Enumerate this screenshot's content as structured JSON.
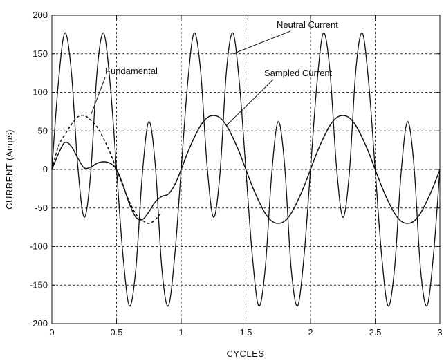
{
  "chart_data": {
    "type": "line",
    "xlabel": "CYCLES",
    "ylabel": "CURRENT (Amps)",
    "xlim": [
      0,
      3
    ],
    "ylim": [
      -200,
      200
    ],
    "xticks": [
      0,
      0.5,
      1,
      1.5,
      2,
      2.5,
      3
    ],
    "xtick_labels": [
      "0",
      "0.5",
      "1",
      "1.5",
      "2",
      "2.5",
      "3"
    ],
    "yticks": [
      -200,
      -150,
      -100,
      -50,
      0,
      50,
      100,
      150,
      200
    ],
    "ytick_labels": [
      "-200",
      "-150",
      "-100",
      "-50",
      "0",
      "50",
      "100",
      "150",
      "200"
    ],
    "grid": true,
    "series": [
      {
        "name": "Neutral Current",
        "style": "solid",
        "points": [
          [
            0,
            0
          ],
          [
            0.05,
            112
          ],
          [
            0.1,
            177
          ],
          [
            0.15,
            128
          ],
          [
            0.2,
            5
          ],
          [
            0.25,
            -62
          ],
          [
            0.3,
            -5
          ],
          [
            0.35,
            128
          ],
          [
            0.4,
            177
          ],
          [
            0.45,
            112
          ],
          [
            0.5,
            0
          ],
          [
            0.55,
            -112
          ],
          [
            0.6,
            -177
          ],
          [
            0.65,
            -128
          ],
          [
            0.7,
            -5
          ],
          [
            0.75,
            62
          ],
          [
            0.8,
            5
          ],
          [
            0.85,
            -128
          ],
          [
            0.9,
            -177
          ],
          [
            0.95,
            -112
          ],
          [
            1.0,
            0
          ],
          [
            1.05,
            112
          ],
          [
            1.1,
            177
          ],
          [
            1.15,
            128
          ],
          [
            1.2,
            5
          ],
          [
            1.25,
            -62
          ],
          [
            1.3,
            -5
          ],
          [
            1.35,
            128
          ],
          [
            1.4,
            177
          ],
          [
            1.45,
            112
          ],
          [
            1.5,
            0
          ],
          [
            1.55,
            -112
          ],
          [
            1.6,
            -177
          ],
          [
            1.65,
            -128
          ],
          [
            1.7,
            -5
          ],
          [
            1.75,
            62
          ],
          [
            1.8,
            5
          ],
          [
            1.85,
            -128
          ],
          [
            1.9,
            -177
          ],
          [
            1.95,
            -112
          ],
          [
            2.0,
            0
          ],
          [
            2.05,
            112
          ],
          [
            2.1,
            177
          ],
          [
            2.15,
            128
          ],
          [
            2.2,
            5
          ],
          [
            2.25,
            -62
          ],
          [
            2.3,
            -5
          ],
          [
            2.35,
            128
          ],
          [
            2.4,
            177
          ],
          [
            2.45,
            112
          ],
          [
            2.5,
            0
          ],
          [
            2.55,
            -112
          ],
          [
            2.6,
            -177
          ],
          [
            2.65,
            -128
          ],
          [
            2.7,
            -5
          ],
          [
            2.75,
            62
          ],
          [
            2.8,
            5
          ],
          [
            2.85,
            -128
          ],
          [
            2.9,
            -177
          ],
          [
            2.95,
            -112
          ],
          [
            3.0,
            0
          ]
        ]
      },
      {
        "name": "Fundamental",
        "style": "dashed",
        "points": [
          [
            0,
            0
          ],
          [
            0.05,
            30
          ],
          [
            0.1,
            45
          ],
          [
            0.15,
            58
          ],
          [
            0.2,
            68
          ],
          [
            0.25,
            70
          ],
          [
            0.3,
            64
          ],
          [
            0.35,
            55
          ],
          [
            0.4,
            40
          ],
          [
            0.45,
            22
          ],
          [
            0.5,
            0
          ],
          [
            0.55,
            -22
          ],
          [
            0.6,
            -42
          ],
          [
            0.65,
            -58
          ],
          [
            0.7,
            -66
          ],
          [
            0.75,
            -70
          ],
          [
            0.8,
            -65
          ],
          [
            0.85,
            -55
          ]
        ]
      },
      {
        "name": "Sampled Current",
        "style": "solid",
        "points": [
          [
            0,
            0
          ],
          [
            0.05,
            20
          ],
          [
            0.1,
            35
          ],
          [
            0.15,
            30
          ],
          [
            0.2,
            15
          ],
          [
            0.25,
            2
          ],
          [
            0.3,
            3
          ],
          [
            0.35,
            8
          ],
          [
            0.4,
            10
          ],
          [
            0.45,
            8
          ],
          [
            0.5,
            0
          ],
          [
            0.55,
            -20
          ],
          [
            0.6,
            -45
          ],
          [
            0.65,
            -62
          ],
          [
            0.7,
            -65
          ],
          [
            0.75,
            -55
          ],
          [
            0.8,
            -42
          ],
          [
            0.85,
            -35
          ],
          [
            0.9,
            -32
          ],
          [
            0.95,
            -20
          ],
          [
            1.0,
            0
          ],
          [
            1.05,
            22
          ],
          [
            1.1,
            41
          ],
          [
            1.15,
            57
          ],
          [
            1.2,
            67
          ],
          [
            1.25,
            70
          ],
          [
            1.3,
            67
          ],
          [
            1.35,
            57
          ],
          [
            1.4,
            41
          ],
          [
            1.45,
            22
          ],
          [
            1.5,
            0
          ],
          [
            1.55,
            -22
          ],
          [
            1.6,
            -41
          ],
          [
            1.65,
            -57
          ],
          [
            1.7,
            -67
          ],
          [
            1.75,
            -70
          ],
          [
            1.8,
            -67
          ],
          [
            1.85,
            -57
          ],
          [
            1.9,
            -41
          ],
          [
            1.95,
            -22
          ],
          [
            2.0,
            0
          ],
          [
            2.05,
            22
          ],
          [
            2.1,
            41
          ],
          [
            2.15,
            57
          ],
          [
            2.2,
            67
          ],
          [
            2.25,
            70
          ],
          [
            2.3,
            67
          ],
          [
            2.35,
            57
          ],
          [
            2.4,
            41
          ],
          [
            2.45,
            22
          ],
          [
            2.5,
            0
          ],
          [
            2.55,
            -22
          ],
          [
            2.6,
            -41
          ],
          [
            2.65,
            -57
          ],
          [
            2.7,
            -67
          ],
          [
            2.75,
            -70
          ],
          [
            2.8,
            -67
          ],
          [
            2.85,
            -57
          ],
          [
            2.9,
            -41
          ],
          [
            2.95,
            -22
          ],
          [
            3.0,
            0
          ]
        ]
      }
    ],
    "annotations": [
      {
        "text": "Neutral Current",
        "target": [
          1.4,
          150
        ]
      },
      {
        "text": "Fundamental",
        "target": [
          0.3,
          70
        ]
      },
      {
        "text": "Sampled Current",
        "target": [
          1.35,
          57
        ]
      }
    ]
  }
}
